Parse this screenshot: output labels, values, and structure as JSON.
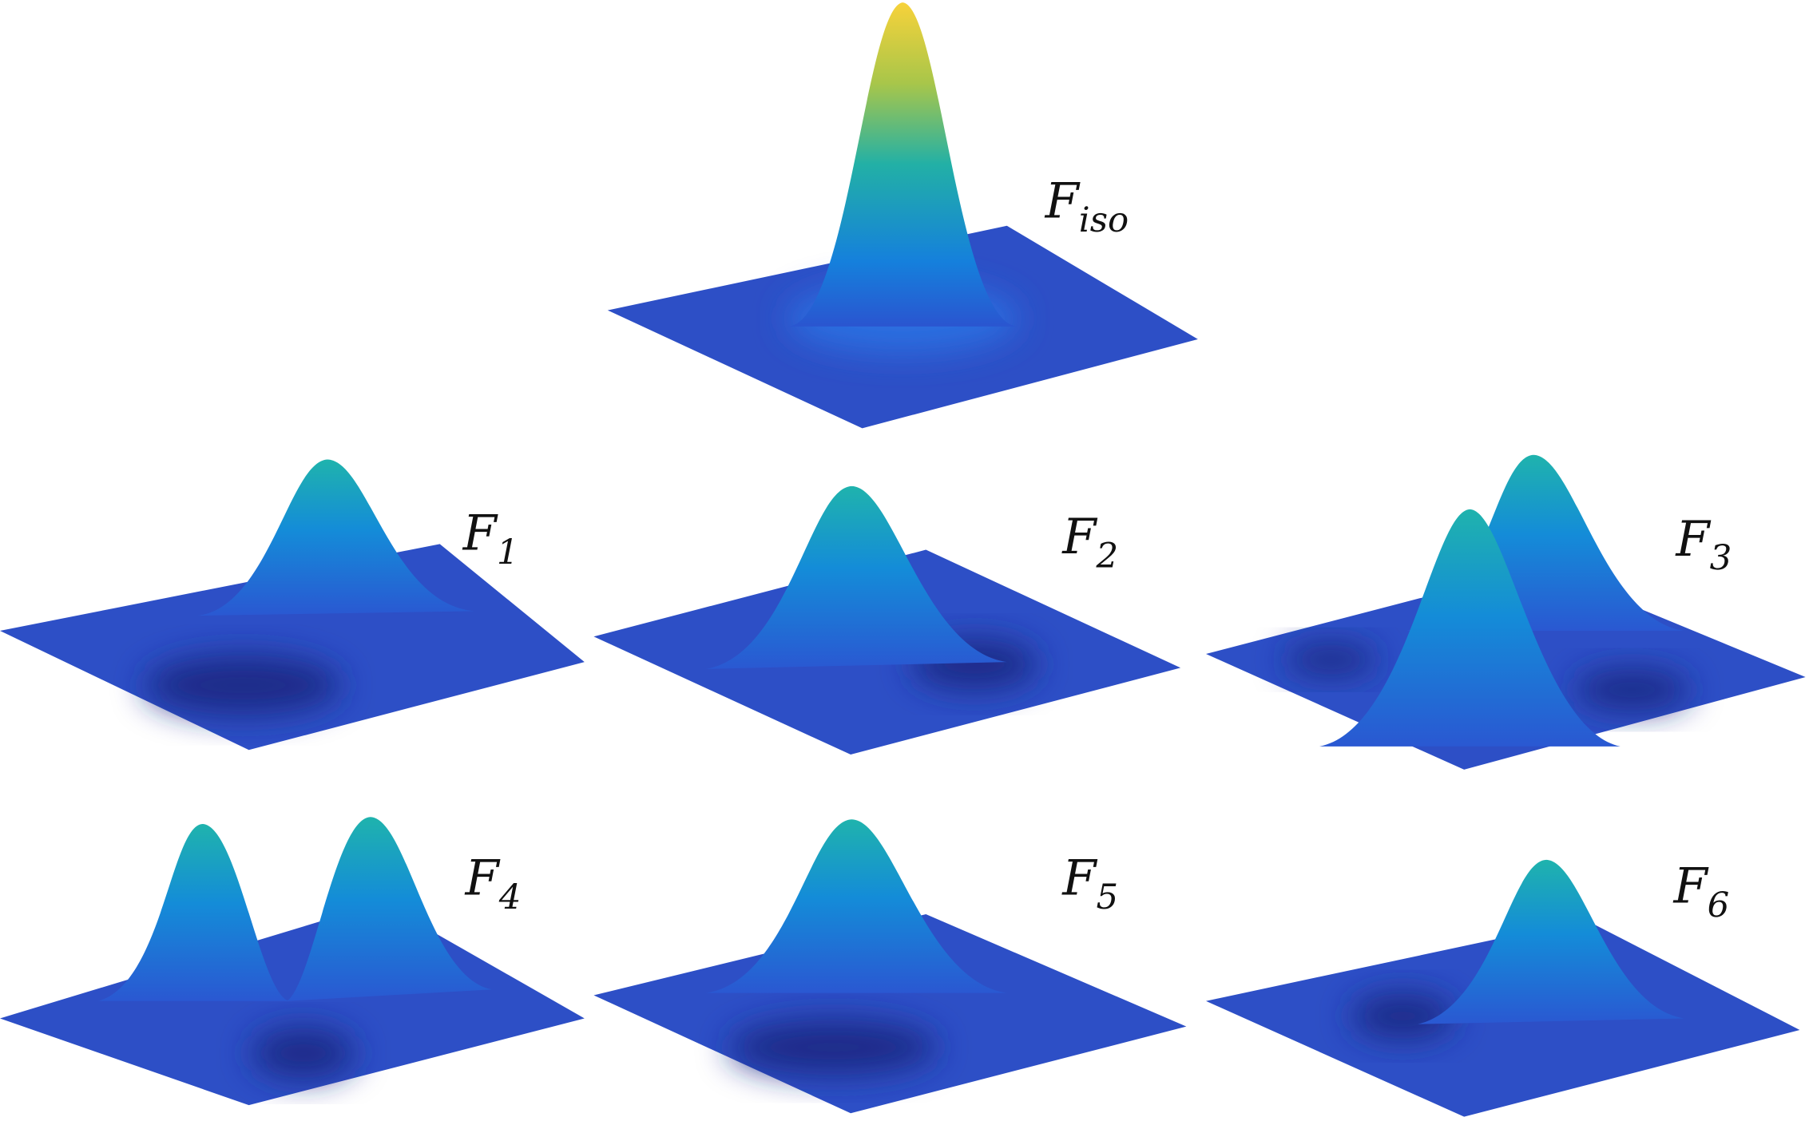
{
  "panels": [
    {
      "label": "F",
      "subscript": "iso"
    },
    {
      "label": "F",
      "subscript": "1"
    },
    {
      "label": "F",
      "subscript": "2"
    },
    {
      "label": "F",
      "subscript": "3"
    },
    {
      "label": "F",
      "subscript": "4"
    },
    {
      "label": "F",
      "subscript": "5"
    },
    {
      "label": "F",
      "subscript": "6"
    }
  ]
}
